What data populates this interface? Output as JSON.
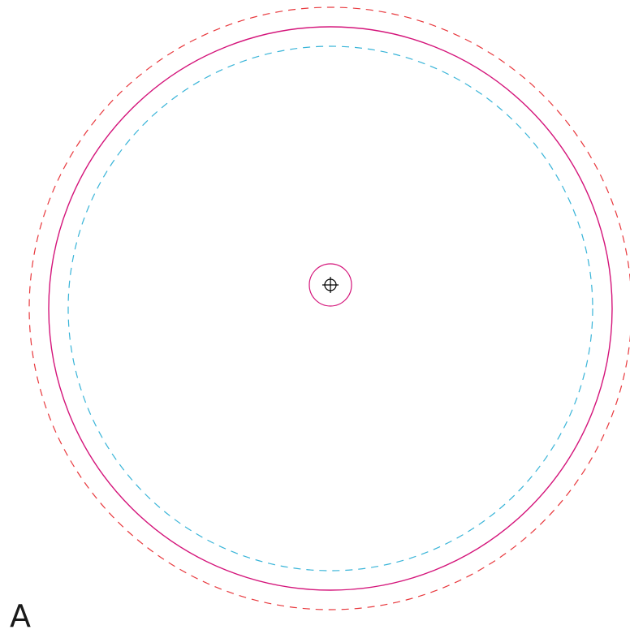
{
  "page_label": "A",
  "colors": {
    "bleed": "#e8383d",
    "trim": "#d4147a",
    "safe": "#38b4d8",
    "spindle_hole": "#d4147a",
    "registration_mark": "#000000"
  },
  "icons": {
    "center_mark": "registration-crosshair"
  }
}
